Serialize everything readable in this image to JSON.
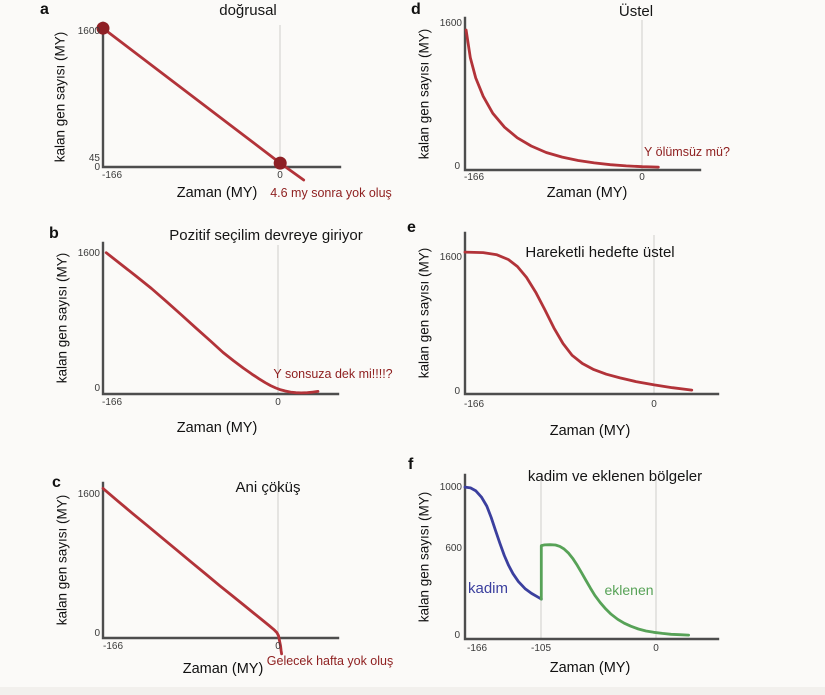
{
  "figure": {
    "background": "#fbfaf8",
    "colors": {
      "curve_red": "#b23339",
      "dot": "#8e2025",
      "annotation": "#8e1f1f",
      "kadim_blue": "#3b3f9e",
      "eklenen_green": "#57a257",
      "axis": "#4d4d4d",
      "gridline": "#d9d8d5"
    },
    "panels": [
      {
        "letter": "a",
        "title": "doğrusal",
        "ylabel": "kalan gen sayısı (MY)",
        "xlabel": "Zaman (MY)",
        "yticks": [
          "1600",
          "45",
          "0"
        ],
        "xticks": [
          "-166",
          "0"
        ],
        "annotation": "4.6 my sonra yok oluş"
      },
      {
        "letter": "b",
        "title": "Pozitif seçilim devreye giriyor",
        "ylabel": "kalan gen sayısı (MY)",
        "xlabel": "Zaman (MY)",
        "yticks": [
          "1600",
          "0"
        ],
        "xticks": [
          "-166",
          "0"
        ],
        "annotation": "Y sonsuza dek mi!!!!?"
      },
      {
        "letter": "c",
        "title": "Ani çöküş",
        "ylabel": "kalan gen sayısı (MY)",
        "xlabel": "Zaman (MY)",
        "yticks": [
          "1600",
          "0"
        ],
        "xticks": [
          "-166",
          "0"
        ],
        "annotation": "Gelecek hafta yok oluş"
      },
      {
        "letter": "d",
        "title": "Üstel",
        "ylabel": "kalan gen sayısı (MY)",
        "xlabel": "Zaman (MY)",
        "yticks": [
          "1600",
          "0"
        ],
        "xticks": [
          "-166",
          "0"
        ],
        "annotation": "Y ölümsüz mü?"
      },
      {
        "letter": "e",
        "title": "Hareketli hedefte üstel",
        "ylabel": "kalan gen sayısı (MY)",
        "xlabel": "Zaman (MY)",
        "yticks": [
          "1600",
          "0"
        ],
        "xticks": [
          "-166",
          "0"
        ],
        "annotation": ""
      },
      {
        "letter": "f",
        "title": "kadim ve eklenen bölgeler",
        "ylabel": "kalan gen sayısı (MY)",
        "xlabel": "Zaman (MY)",
        "yticks": [
          "1000",
          "600",
          "0"
        ],
        "xticks": [
          "-166",
          "-105",
          "0"
        ],
        "series_labels": {
          "kadim": "kadim",
          "eklenen": "eklenen"
        }
      }
    ]
  },
  "chart_data": [
    {
      "panel": "a",
      "type": "line",
      "title": "doğrusal",
      "xlabel": "Zaman (MY)",
      "ylabel": "kalan gen sayısı (MY)",
      "xlim": [
        -166,
        56
      ],
      "ylim": [
        0,
        1660
      ],
      "xticks": [
        -166,
        0
      ],
      "yticks": [
        0,
        45,
        1600
      ],
      "grid": "vertical line at x=0",
      "annotation": "4.6 my sonra yok oluş",
      "series": [
        {
          "name": "kalan gen sayısı",
          "color": "#b23339",
          "marker_color": "#8e2025",
          "marker_indices": [
            0,
            1
          ],
          "points": [
            [
              -166,
              1600
            ],
            [
              0,
              45
            ],
            [
              22,
              -150
            ]
          ]
        }
      ]
    },
    {
      "panel": "b",
      "type": "line",
      "title": "Pozitif seçilim devreye giriyor",
      "xlabel": "Zaman (MY)",
      "ylabel": "kalan gen sayısı (MY)",
      "xlim": [
        -166,
        57
      ],
      "ylim": [
        0,
        1710
      ],
      "xticks": [
        -166,
        0
      ],
      "yticks": [
        0,
        1600
      ],
      "grid": "vertical line at x=0",
      "annotation": "Y sonsuza dek mi!!!!?",
      "series": [
        {
          "name": "kalan gen sayısı",
          "color": "#b23339",
          "points": [
            [
              -163,
              1600
            ],
            [
              -148,
              1460
            ],
            [
              -134,
              1330
            ],
            [
              -120,
              1195
            ],
            [
              -106,
              1050
            ],
            [
              -92,
              900
            ],
            [
              -78,
              750
            ],
            [
              -64,
              600
            ],
            [
              -52,
              470
            ],
            [
              -42,
              375
            ],
            [
              -33,
              295
            ],
            [
              -25,
              228
            ],
            [
              -18,
              172
            ],
            [
              -12,
              128
            ],
            [
              -7,
              95
            ],
            [
              -2,
              68
            ],
            [
              2,
              50
            ],
            [
              7,
              34
            ],
            [
              12,
              22
            ],
            [
              17,
              15
            ],
            [
              22,
              13
            ],
            [
              28,
              15
            ],
            [
              33,
              21
            ],
            [
              38,
              29
            ]
          ]
        }
      ]
    },
    {
      "panel": "c",
      "type": "line",
      "title": "Ani çöküş",
      "xlabel": "Zaman (MY)",
      "ylabel": "kalan gen sayısı (MY)",
      "xlim": [
        -166,
        57
      ],
      "ylim": [
        0,
        1710
      ],
      "xticks": [
        -166,
        0
      ],
      "yticks": [
        0,
        1600
      ],
      "grid": "vertical line at x=0",
      "annotation": "Gelecek hafta yok oluş",
      "series": [
        {
          "name": "kalan gen sayısı",
          "color": "#b23339",
          "points": [
            [
              -166,
              1650
            ],
            [
              -152,
              1510
            ],
            [
              -138,
              1375
            ],
            [
              -124,
              1240
            ],
            [
              -110,
              1105
            ],
            [
              -96,
              970
            ],
            [
              -82,
              835
            ],
            [
              -68,
              700
            ],
            [
              -55,
              575
            ],
            [
              -43,
              463
            ],
            [
              -32,
              360
            ],
            [
              -23,
              275
            ],
            [
              -15,
              200
            ],
            [
              -9,
              143
            ],
            [
              -4,
              95
            ],
            [
              -1,
              60
            ],
            [
              0.5,
              25
            ],
            [
              1.5,
              -30
            ],
            [
              2.5,
              -90
            ],
            [
              3,
              -140
            ],
            [
              3.5,
              -175
            ]
          ]
        }
      ]
    },
    {
      "panel": "d",
      "type": "line",
      "title": "Üstel",
      "xlabel": "Zaman (MY)",
      "ylabel": "kalan gen sayısı (MY)",
      "xlim": [
        -166,
        54
      ],
      "ylim": [
        0,
        1650
      ],
      "xticks": [
        -166,
        0
      ],
      "yticks": [
        0,
        1600
      ],
      "grid": "vertical line at x=0",
      "annotation": "Y ölümsüz mü?",
      "series": [
        {
          "name": "kalan gen sayısı",
          "color": "#b23339",
          "points": [
            [
              -165,
              1520
            ],
            [
              -161,
              1220
            ],
            [
              -156,
              1000
            ],
            [
              -149,
              800
            ],
            [
              -140,
              615
            ],
            [
              -129,
              465
            ],
            [
              -117,
              350
            ],
            [
              -104,
              260
            ],
            [
              -90,
              190
            ],
            [
              -75,
              140
            ],
            [
              -60,
              103
            ],
            [
              -45,
              77
            ],
            [
              -30,
              58
            ],
            [
              -15,
              45
            ],
            [
              0,
              36
            ],
            [
              8,
              34
            ],
            [
              15,
              32
            ]
          ]
        }
      ]
    },
    {
      "panel": "e",
      "type": "line",
      "title": "Hareketli hedefte üstel",
      "xlabel": "Zaman (MY)",
      "ylabel": "kalan gen sayısı (MY)",
      "xlim": [
        -166,
        56
      ],
      "ylim": [
        0,
        1850
      ],
      "xticks": [
        -166,
        0
      ],
      "yticks": [
        0,
        1600
      ],
      "grid": "vertical line at x=0",
      "series": [
        {
          "name": "kalan gen sayısı",
          "color": "#b23339",
          "points": [
            [
              -166,
              1630
            ],
            [
              -150,
              1625
            ],
            [
              -138,
              1600
            ],
            [
              -128,
              1545
            ],
            [
              -120,
              1465
            ],
            [
              -112,
              1340
            ],
            [
              -104,
              1170
            ],
            [
              -96,
              970
            ],
            [
              -88,
              760
            ],
            [
              -80,
              580
            ],
            [
              -72,
              445
            ],
            [
              -63,
              350
            ],
            [
              -53,
              280
            ],
            [
              -42,
              228
            ],
            [
              -30,
              185
            ],
            [
              -16,
              143
            ],
            [
              0,
              105
            ],
            [
              16,
              72
            ],
            [
              33,
              45
            ]
          ]
        }
      ]
    },
    {
      "panel": "f",
      "type": "line",
      "title": "kadim ve eklenen bölgeler",
      "xlabel": "Zaman (MY)",
      "ylabel": "kalan gen sayısı (MY)",
      "xlim": [
        -175,
        57
      ],
      "ylim": [
        0,
        1080
      ],
      "xticks": [
        -166,
        -105,
        0
      ],
      "yticks": [
        0,
        600,
        1000
      ],
      "grid": "vertical lines at x=-105 and x=0",
      "series": [
        {
          "name": "kadim",
          "color": "#3b3f9e",
          "points": [
            [
              -175,
              1000
            ],
            [
              -170,
              995
            ],
            [
              -165,
              975
            ],
            [
              -160,
              935
            ],
            [
              -155,
              875
            ],
            [
              -151,
              800
            ],
            [
              -147,
              715
            ],
            [
              -143,
              630
            ],
            [
              -139,
              550
            ],
            [
              -135,
              485
            ],
            [
              -131,
              430
            ],
            [
              -126,
              378
            ],
            [
              -120,
              332
            ],
            [
              -114,
              300
            ],
            [
              -108,
              275
            ],
            [
              -105,
              263
            ]
          ]
        },
        {
          "name": "eklenen",
          "color": "#57a257",
          "points": [
            [
              -105,
              263
            ],
            [
              -105,
              615
            ],
            [
              -102,
              620
            ],
            [
              -97,
              621
            ],
            [
              -92,
              619
            ],
            [
              -88,
              610
            ],
            [
              -84,
              592
            ],
            [
              -80,
              565
            ],
            [
              -76,
              528
            ],
            [
              -72,
              485
            ],
            [
              -68,
              435
            ],
            [
              -64,
              385
            ],
            [
              -60,
              335
            ],
            [
              -56,
              288
            ],
            [
              -51,
              240
            ],
            [
              -46,
              198
            ],
            [
              -41,
              163
            ],
            [
              -35,
              130
            ],
            [
              -29,
              104
            ],
            [
              -23,
              84
            ],
            [
              -16,
              66
            ],
            [
              -9,
              53
            ],
            [
              -2,
              44
            ],
            [
              6,
              37
            ],
            [
              14,
              31
            ],
            [
              22,
              28
            ],
            [
              30,
              26
            ]
          ]
        }
      ]
    }
  ]
}
